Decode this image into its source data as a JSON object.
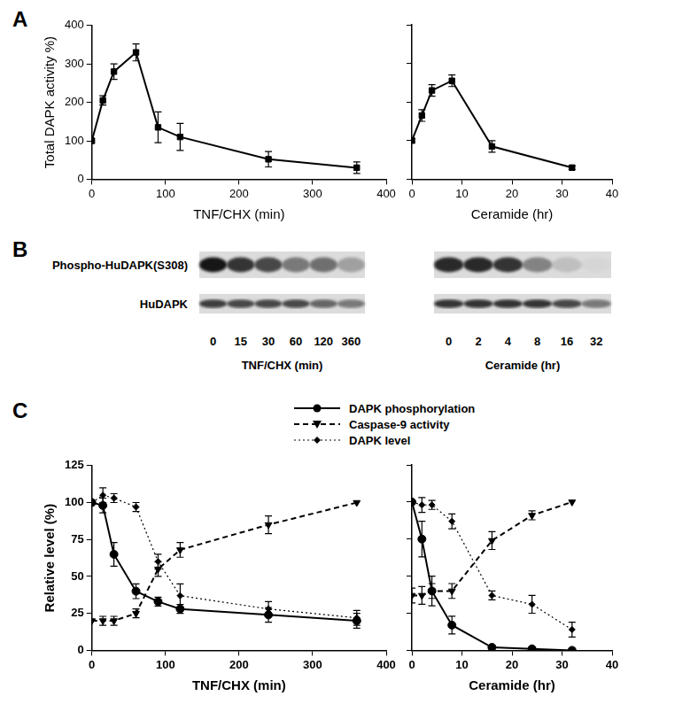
{
  "panel_labels": [
    "A",
    "B",
    "C"
  ],
  "chart_data": [
    {
      "type": "line",
      "x_label": "TNF/CHX (min)",
      "y_label": "Total DAPK activity %)",
      "x": [
        0,
        15,
        30,
        60,
        90,
        120,
        240,
        360
      ],
      "values": [
        100,
        205,
        280,
        330,
        135,
        110,
        52,
        30
      ],
      "errors": [
        0,
        12,
        20,
        22,
        40,
        35,
        20,
        15
      ],
      "color": "#000000",
      "marker": "square",
      "line_style": "solid",
      "xlim": [
        0,
        400
      ],
      "xticks": [
        0,
        100,
        200,
        300,
        400
      ],
      "ylim": [
        0,
        400
      ],
      "yticks": [
        0,
        100,
        200,
        300,
        400
      ],
      "grid": false
    },
    {
      "type": "line",
      "x_label": "Ceramide (hr)",
      "x": [
        0,
        2,
        4,
        8,
        16,
        32
      ],
      "values": [
        100,
        165,
        230,
        255,
        85,
        30
      ],
      "errors": [
        5,
        15,
        15,
        15,
        15,
        5
      ],
      "color": "#000000",
      "marker": "square",
      "line_style": "solid",
      "xlim": [
        0,
        40
      ],
      "xticks": [
        0,
        10,
        20,
        30,
        40
      ],
      "ylim": [
        0,
        400
      ],
      "yticks": [
        0,
        100,
        200,
        300,
        400
      ],
      "grid": false,
      "tick_labels": "x"
    },
    {
      "type": "line",
      "x_label": "TNF/CHX (min)",
      "y_label": "Relative level (%)",
      "x": [
        0,
        15,
        30,
        60,
        90,
        120,
        240,
        360
      ],
      "series": [
        {
          "name": "DAPK phosphorylation",
          "color": "#000000",
          "marker": "circle",
          "line_style": "solid",
          "values": [
            100,
            98,
            65,
            40,
            33,
            28,
            24,
            20
          ],
          "errors": [
            0,
            5,
            8,
            5,
            3,
            3,
            5,
            5
          ]
        },
        {
          "name": "Caspase-9 activity",
          "color": "#000000",
          "marker": "triangle-down",
          "line_style": "dashed",
          "values": [
            20,
            20,
            20,
            25,
            55,
            68,
            85,
            100
          ],
          "errors": [
            0,
            3,
            3,
            3,
            5,
            5,
            6,
            0
          ]
        },
        {
          "name": "DAPK level",
          "color": "#000000",
          "marker": "diamond",
          "line_style": "dotted",
          "values": [
            100,
            105,
            103,
            97,
            60,
            37,
            28,
            22
          ],
          "errors": [
            0,
            5,
            3,
            3,
            5,
            8,
            5,
            5
          ]
        }
      ],
      "xlim": [
        0,
        400
      ],
      "xticks": [
        0,
        100,
        200,
        300,
        400
      ],
      "ylim": [
        0,
        125
      ],
      "yticks": [
        0,
        25,
        50,
        75,
        100,
        125
      ],
      "grid": false,
      "legend": "top"
    },
    {
      "type": "line",
      "x_label": "Ceramide (hr)",
      "x": [
        0,
        2,
        4,
        8,
        16,
        24,
        32
      ],
      "series": [
        {
          "color": "#000000",
          "marker": "circle",
          "line_style": "solid",
          "values": [
            100,
            75,
            40,
            17,
            2,
            1,
            0
          ],
          "errors": [
            0,
            12,
            10,
            6,
            1,
            1,
            0
          ]
        },
        {
          "color": "#000000",
          "marker": "triangle-down",
          "line_style": "dashed",
          "values": [
            37,
            37,
            40,
            40,
            74,
            91,
            100
          ],
          "errors": [
            5,
            6,
            5,
            5,
            6,
            3,
            0
          ]
        },
        {
          "color": "#000000",
          "marker": "diamond",
          "line_style": "dotted",
          "values": [
            100,
            98,
            98,
            87,
            37,
            31,
            14
          ],
          "errors": [
            0,
            5,
            3,
            5,
            3,
            6,
            5
          ]
        }
      ],
      "xlim": [
        0,
        40
      ],
      "xticks": [
        0,
        10,
        20,
        30,
        40
      ],
      "ylim": [
        0,
        125
      ],
      "yticks": [
        0,
        25,
        50,
        75,
        100,
        125
      ],
      "grid": false,
      "tick_labels": "x"
    }
  ],
  "blot": {
    "rows": [
      "Phospho-HuDAPK(S308)",
      "HuDAPK"
    ],
    "panels": [
      {
        "x_label": "TNF/CHX (min)",
        "lanes": [
          0,
          15,
          30,
          60,
          120,
          360
        ],
        "band_intensity": [
          [
            1.0,
            0.85,
            0.75,
            0.5,
            0.55,
            0.3
          ],
          [
            0.8,
            0.75,
            0.75,
            0.75,
            0.6,
            0.5
          ]
        ]
      },
      {
        "x_label": "Ceramide (hr)",
        "lanes": [
          0,
          2,
          4,
          8,
          16,
          32
        ],
        "band_intensity": [
          [
            0.9,
            0.9,
            0.85,
            0.45,
            0.15,
            0.03
          ],
          [
            0.85,
            0.85,
            0.85,
            0.85,
            0.75,
            0.5
          ]
        ]
      }
    ]
  }
}
